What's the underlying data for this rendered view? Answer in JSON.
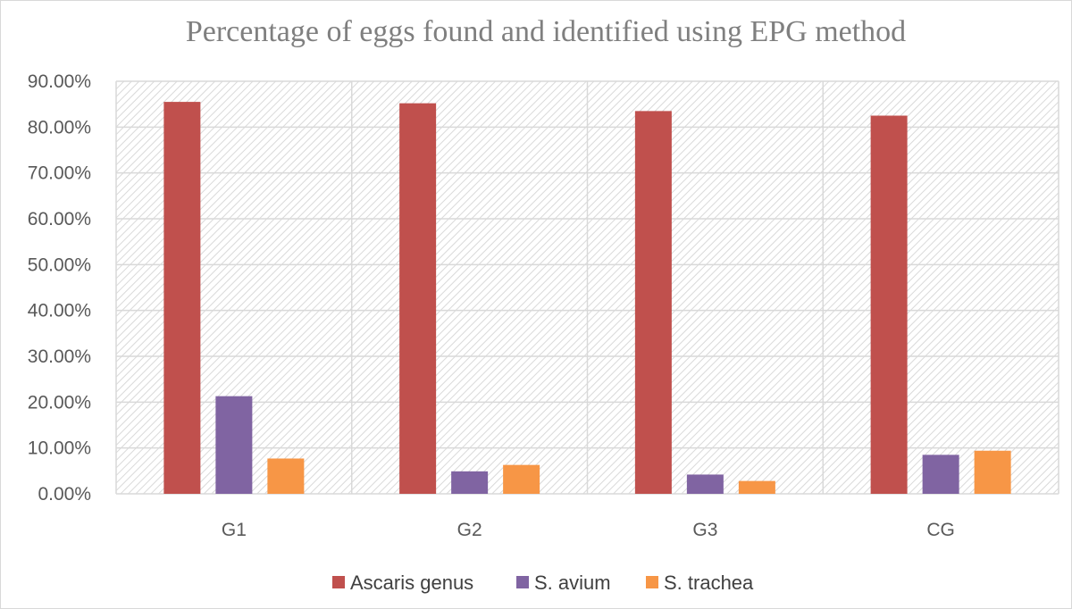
{
  "chart_data": {
    "type": "bar",
    "title": "Percentage of eggs found and identified using EPG method",
    "categories": [
      "G1",
      "G2",
      "G3",
      "CG"
    ],
    "series": [
      {
        "name": "Ascaris genus",
        "color": "#c0504d",
        "values": [
          85.5,
          85.2,
          83.5,
          82.5
        ]
      },
      {
        "name": "S. avium",
        "color": "#8064a2",
        "values": [
          21.3,
          4.9,
          4.2,
          8.5
        ]
      },
      {
        "name": "S. trachea",
        "color": "#f79646",
        "values": [
          7.7,
          6.3,
          2.8,
          9.4
        ]
      }
    ],
    "y_ticks": [
      "0.00%",
      "10.00%",
      "20.00%",
      "30.00%",
      "40.00%",
      "50.00%",
      "60.00%",
      "70.00%",
      "80.00%",
      "90.00%"
    ],
    "ylim": [
      0,
      90
    ],
    "xlabel": "",
    "ylabel": "",
    "grid": true,
    "legend_position": "bottom",
    "plot_background": "hatched"
  }
}
